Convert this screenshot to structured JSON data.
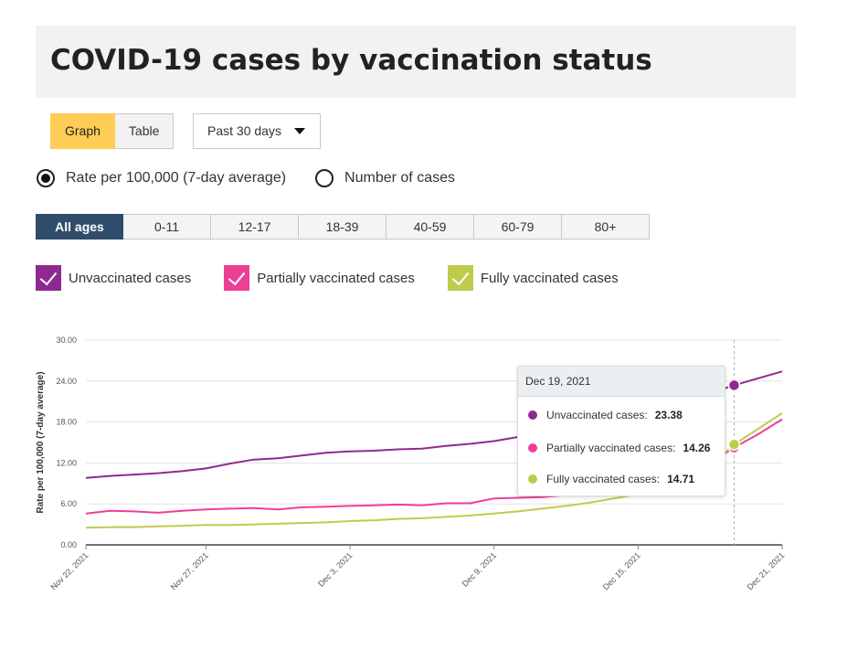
{
  "page": {
    "title": "COVID-19 cases by vaccination status"
  },
  "view_toggle": {
    "graph_label": "Graph",
    "table_label": "Table",
    "selected": "Graph"
  },
  "period": {
    "selected": "Past 30 days"
  },
  "measure": {
    "options": [
      {
        "label": "Rate per 100,000 (7-day average)",
        "selected": true
      },
      {
        "label": "Number of cases",
        "selected": false
      }
    ]
  },
  "age_groups": {
    "items": [
      "All ages",
      "0-11",
      "12-17",
      "18-39",
      "40-59",
      "60-79",
      "80+"
    ],
    "selected": "All ages"
  },
  "legend": {
    "items": [
      {
        "label": "Unvaccinated cases",
        "color": "#8e2a8f",
        "checked": true
      },
      {
        "label": "Partially vaccinated cases",
        "color": "#ee3f96",
        "checked": true
      },
      {
        "label": "Fully vaccinated cases",
        "color": "#bfcb4c",
        "checked": true
      }
    ]
  },
  "chart_data": {
    "type": "line",
    "ylabel": "Rate per 100,000 (7-day average)",
    "ylim": [
      0,
      30
    ],
    "yticks": [
      "0.00",
      "6.00",
      "12.00",
      "18.00",
      "24.00",
      "30.00"
    ],
    "xticks": [
      "Nov 22, 2021",
      "Nov 27, 2021",
      "Dec 3, 2021",
      "Dec 9, 2021",
      "Dec 15, 2021",
      "Dec 21, 2021"
    ],
    "x": [
      "Nov 22, 2021",
      "Nov 23, 2021",
      "Nov 24, 2021",
      "Nov 25, 2021",
      "Nov 26, 2021",
      "Nov 27, 2021",
      "Nov 28, 2021",
      "Nov 29, 2021",
      "Nov 30, 2021",
      "Dec 1, 2021",
      "Dec 2, 2021",
      "Dec 3, 2021",
      "Dec 4, 2021",
      "Dec 5, 2021",
      "Dec 6, 2021",
      "Dec 7, 2021",
      "Dec 8, 2021",
      "Dec 9, 2021",
      "Dec 10, 2021",
      "Dec 11, 2021",
      "Dec 12, 2021",
      "Dec 13, 2021",
      "Dec 14, 2021",
      "Dec 15, 2021",
      "Dec 16, 2021",
      "Dec 17, 2021",
      "Dec 18, 2021",
      "Dec 19, 2021",
      "Dec 20, 2021",
      "Dec 21, 2021"
    ],
    "grid": true,
    "series": [
      {
        "name": "Unvaccinated cases",
        "color": "#8e2a8f",
        "values": [
          9.8,
          10.1,
          10.3,
          10.5,
          10.8,
          11.2,
          11.9,
          12.5,
          12.7,
          13.1,
          13.5,
          13.7,
          13.8,
          14.0,
          14.1,
          14.5,
          14.8,
          15.2,
          15.8,
          16.4,
          17.0,
          17.8,
          18.6,
          19.4,
          20.2,
          21.0,
          22.2,
          23.38,
          24.4,
          25.4
        ]
      },
      {
        "name": "Partially vaccinated cases",
        "color": "#ee3f96",
        "values": [
          4.6,
          5.0,
          4.9,
          4.7,
          5.0,
          5.2,
          5.3,
          5.4,
          5.2,
          5.5,
          5.6,
          5.7,
          5.8,
          5.9,
          5.8,
          6.1,
          6.1,
          6.8,
          6.9,
          7.0,
          7.3,
          7.6,
          8.1,
          8.6,
          9.3,
          10.2,
          12.0,
          14.26,
          16.2,
          18.4
        ]
      },
      {
        "name": "Fully vaccinated cases",
        "color": "#bfcb4c",
        "values": [
          2.5,
          2.6,
          2.6,
          2.7,
          2.8,
          2.9,
          2.9,
          3.0,
          3.1,
          3.2,
          3.3,
          3.5,
          3.6,
          3.8,
          3.9,
          4.1,
          4.3,
          4.6,
          4.9,
          5.3,
          5.7,
          6.2,
          6.8,
          7.4,
          8.3,
          9.5,
          11.6,
          14.71,
          17.0,
          19.3
        ]
      }
    ],
    "tooltip": {
      "date": "Dec 19, 2021",
      "rows": [
        {
          "label": "Unvaccinated cases:",
          "value": "23.38",
          "color": "#8e2a8f"
        },
        {
          "label": "Partially vaccinated cases:",
          "value": "14.26",
          "color": "#ee3f96"
        },
        {
          "label": "Fully vaccinated cases:",
          "value": "14.71",
          "color": "#bfcb4c"
        }
      ]
    },
    "highlight_index": 27
  }
}
